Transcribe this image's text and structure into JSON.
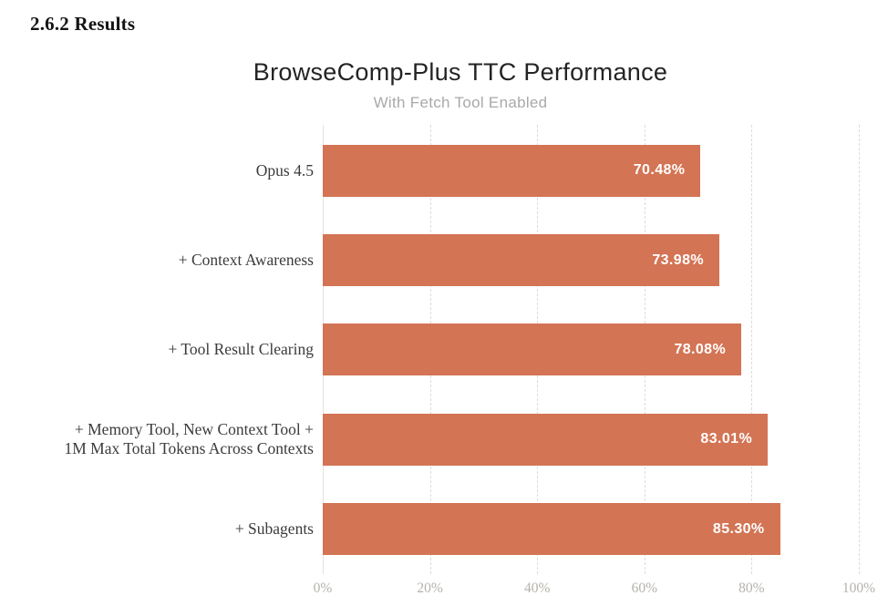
{
  "page": {
    "heading": "2.6.2 Results"
  },
  "chart": {
    "title": "BrowseComp-Plus TTC Performance",
    "subtitle": "With Fetch Tool Enabled"
  },
  "chart_data": {
    "type": "bar",
    "orientation": "horizontal",
    "title": "BrowseComp-Plus TTC Performance",
    "subtitle": "With Fetch Tool Enabled",
    "categories": [
      "Opus 4.5",
      "+ Context Awareness",
      "+ Tool Result Clearing",
      "+ Memory Tool, New Context Tool + 1M Max Total Tokens Across Contexts",
      "+ Subagents"
    ],
    "category_lines": [
      [
        "Opus 4.5"
      ],
      [
        "+ Context Awareness"
      ],
      [
        "+ Tool Result Clearing"
      ],
      [
        "+ Memory Tool, New Context Tool +",
        "1M Max Total Tokens Across Contexts"
      ],
      [
        "+ Subagents"
      ]
    ],
    "values": [
      70.48,
      73.98,
      78.08,
      83.01,
      85.3
    ],
    "value_labels": [
      "70.48%",
      "73.98%",
      "78.08%",
      "83.01%",
      "85.30%"
    ],
    "xlabel": "",
    "ylabel": "",
    "xlim": [
      0,
      100
    ],
    "x_ticks": [
      "0%",
      "20%",
      "40%",
      "60%",
      "80%",
      "100%"
    ],
    "grid": true,
    "gridline_style": "dashed-vertical",
    "legend": false,
    "value_label_position": "inside-right",
    "bar_color": "#d37454",
    "value_label_color": "#ffffff"
  },
  "colors": {
    "bar": "#d37454",
    "title": "#242424",
    "subtitle": "#a9a9a9",
    "category_label": "#3b3b3b",
    "tick_label": "#b5b2ab",
    "gridline": "#dcdcdc",
    "axis_line": "#e5e3df",
    "heading": "#141414"
  }
}
